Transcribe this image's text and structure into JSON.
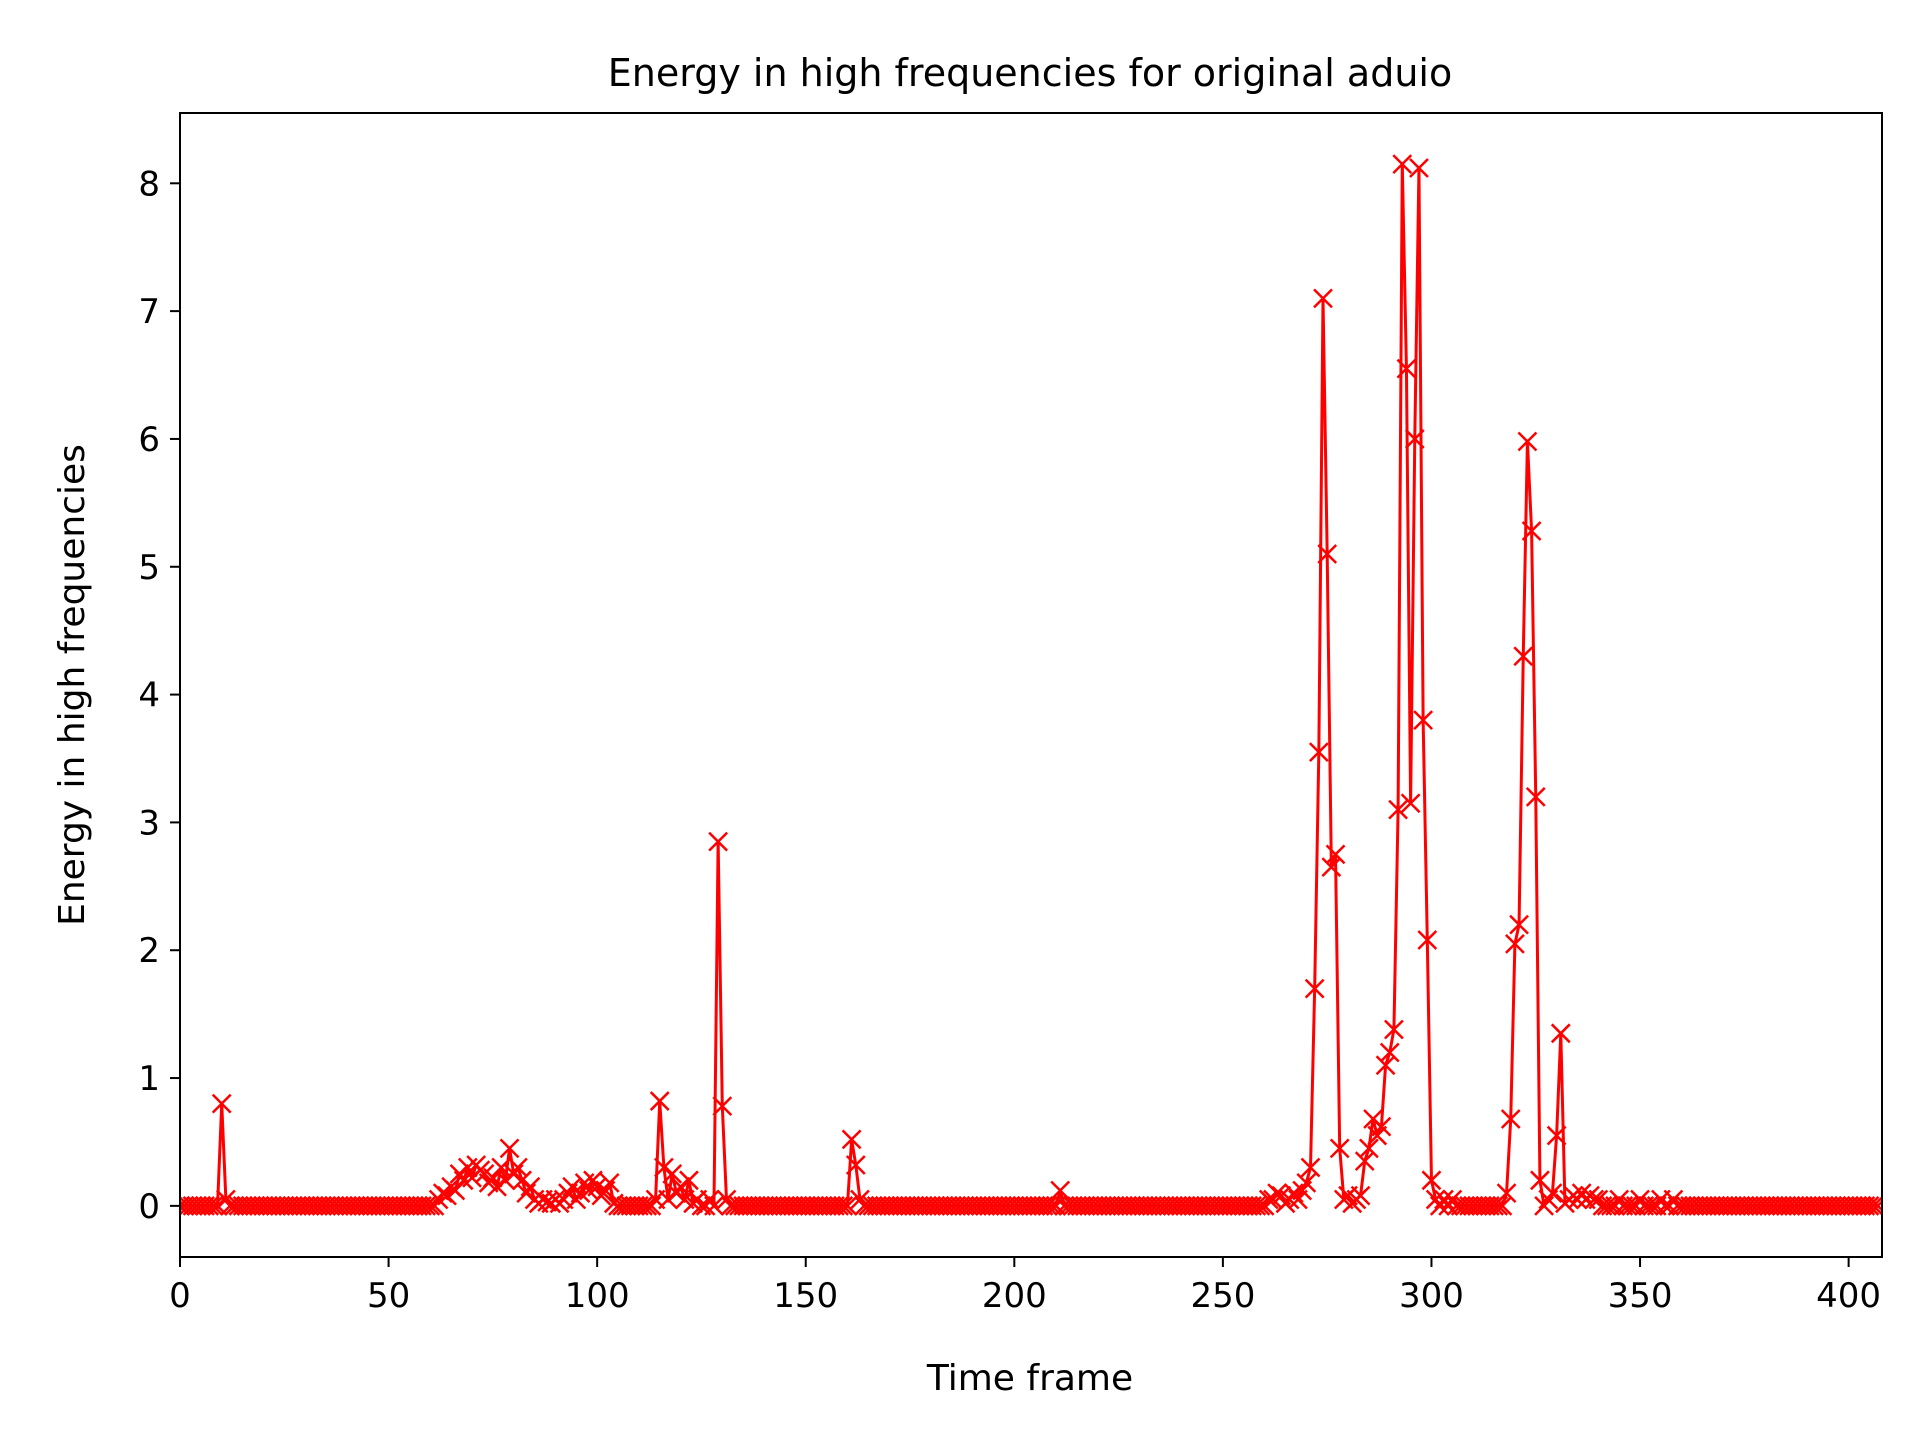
{
  "chart_data": {
    "type": "line",
    "title": "Energy in high frequencies for original aduio",
    "xlabel": "Time frame",
    "ylabel": "Energy in high frequencies",
    "xlim": [
      0,
      408
    ],
    "ylim": [
      -0.4,
      8.55
    ],
    "xticks": [
      0,
      50,
      100,
      150,
      200,
      250,
      300,
      350,
      400
    ],
    "yticks": [
      0,
      1,
      2,
      3,
      4,
      5,
      6,
      7,
      8
    ],
    "grid": false,
    "marker": "x",
    "color": "#ff0000",
    "series": [
      {
        "points": [
          [
            0,
            0
          ],
          [
            1,
            0
          ],
          [
            2,
            0
          ],
          [
            3,
            0
          ],
          [
            4,
            0
          ],
          [
            5,
            0
          ],
          [
            6,
            0
          ],
          [
            7,
            0
          ],
          [
            8,
            0
          ],
          [
            9,
            0
          ],
          [
            10,
            0.8
          ],
          [
            11,
            0.05
          ],
          [
            12,
            0
          ],
          [
            62,
            0.05
          ],
          [
            63,
            0.1
          ],
          [
            64,
            0.08
          ],
          [
            65,
            0.15
          ],
          [
            66,
            0.12
          ],
          [
            67,
            0.25
          ],
          [
            68,
            0.2
          ],
          [
            69,
            0.3
          ],
          [
            70,
            0.22
          ],
          [
            71,
            0.32
          ],
          [
            72,
            0.28
          ],
          [
            73,
            0.25
          ],
          [
            74,
            0.18
          ],
          [
            75,
            0.22
          ],
          [
            76,
            0.15
          ],
          [
            77,
            0.3
          ],
          [
            78,
            0.2
          ],
          [
            79,
            0.45
          ],
          [
            80,
            0.25
          ],
          [
            81,
            0.3
          ],
          [
            82,
            0.2
          ],
          [
            83,
            0.1
          ],
          [
            84,
            0.15
          ],
          [
            85,
            0.05
          ],
          [
            86,
            0.02
          ],
          [
            87,
            0.05
          ],
          [
            88,
            0.03
          ],
          [
            89,
            0.02
          ],
          [
            90,
            0.05
          ],
          [
            91,
            0.02
          ],
          [
            92,
            0.05
          ],
          [
            93,
            0.1
          ],
          [
            94,
            0.15
          ],
          [
            95,
            0.05
          ],
          [
            96,
            0.1
          ],
          [
            97,
            0.18
          ],
          [
            98,
            0.12
          ],
          [
            99,
            0.2
          ],
          [
            100,
            0.15
          ],
          [
            101,
            0.08
          ],
          [
            102,
            0.12
          ],
          [
            103,
            0.18
          ],
          [
            104,
            0.02
          ],
          [
            105,
            0
          ],
          [
            113,
            0
          ],
          [
            114,
            0.05
          ],
          [
            115,
            0.82
          ],
          [
            116,
            0.3
          ],
          [
            117,
            0.05
          ],
          [
            118,
            0.25
          ],
          [
            119,
            0.1
          ],
          [
            120,
            0.15
          ],
          [
            121,
            0.05
          ],
          [
            122,
            0.2
          ],
          [
            123,
            0.02
          ],
          [
            124,
            0.05
          ],
          [
            125,
            0
          ],
          [
            126,
            0
          ],
          [
            127,
            0.05
          ],
          [
            128,
            0
          ],
          [
            129,
            2.85
          ],
          [
            130,
            0.78
          ],
          [
            131,
            0.05
          ],
          [
            132,
            0
          ],
          [
            160,
            0
          ],
          [
            161,
            0.52
          ],
          [
            162,
            0.32
          ],
          [
            163,
            0.05
          ],
          [
            164,
            0
          ],
          [
            210,
            0
          ],
          [
            211,
            0.12
          ],
          [
            212,
            0
          ],
          [
            260,
            0
          ],
          [
            261,
            0.05
          ],
          [
            262,
            0.05
          ],
          [
            263,
            0.1
          ],
          [
            264,
            0.08
          ],
          [
            265,
            0.02
          ],
          [
            266,
            0.05
          ],
          [
            267,
            0.1
          ],
          [
            268,
            0.05
          ],
          [
            269,
            0.12
          ],
          [
            270,
            0.18
          ],
          [
            271,
            0.3
          ],
          [
            272,
            1.7
          ],
          [
            273,
            3.55
          ],
          [
            274,
            7.1
          ],
          [
            275,
            5.1
          ],
          [
            276,
            2.65
          ],
          [
            277,
            2.75
          ],
          [
            278,
            0.45
          ],
          [
            279,
            0.05
          ],
          [
            280,
            0.08
          ],
          [
            281,
            0.02
          ],
          [
            282,
            0.05
          ],
          [
            283,
            0.08
          ],
          [
            284,
            0.35
          ],
          [
            285,
            0.45
          ],
          [
            286,
            0.68
          ],
          [
            287,
            0.55
          ],
          [
            288,
            0.62
          ],
          [
            289,
            1.1
          ],
          [
            290,
            1.2
          ],
          [
            291,
            1.38
          ],
          [
            292,
            3.1
          ],
          [
            293,
            8.15
          ],
          [
            294,
            6.55
          ],
          [
            295,
            3.15
          ],
          [
            296,
            6.0
          ],
          [
            297,
            8.12
          ],
          [
            298,
            3.8
          ],
          [
            299,
            2.08
          ],
          [
            300,
            0.2
          ],
          [
            301,
            0.05
          ],
          [
            302,
            0
          ],
          [
            303,
            0.05
          ],
          [
            304,
            0
          ],
          [
            305,
            0.05
          ],
          [
            306,
            0
          ],
          [
            317,
            0
          ],
          [
            318,
            0.1
          ],
          [
            319,
            0.68
          ],
          [
            320,
            2.05
          ],
          [
            321,
            2.2
          ],
          [
            322,
            4.3
          ],
          [
            323,
            5.98
          ],
          [
            324,
            5.28
          ],
          [
            325,
            3.2
          ],
          [
            326,
            0.2
          ],
          [
            327,
            0
          ],
          [
            328,
            0.05
          ],
          [
            329,
            0.1
          ],
          [
            330,
            0.55
          ],
          [
            331,
            1.35
          ],
          [
            332,
            0.02
          ],
          [
            333,
            0.05
          ],
          [
            334,
            0.08
          ],
          [
            335,
            0.05
          ],
          [
            336,
            0.1
          ],
          [
            337,
            0.05
          ],
          [
            338,
            0.08
          ],
          [
            339,
            0.05
          ],
          [
            340,
            0.05
          ],
          [
            345,
            0.05
          ],
          [
            350,
            0.05
          ],
          [
            355,
            0.05
          ],
          [
            358,
            0.05
          ],
          [
            360,
            0
          ],
          [
            408,
            0
          ]
        ]
      }
    ]
  }
}
